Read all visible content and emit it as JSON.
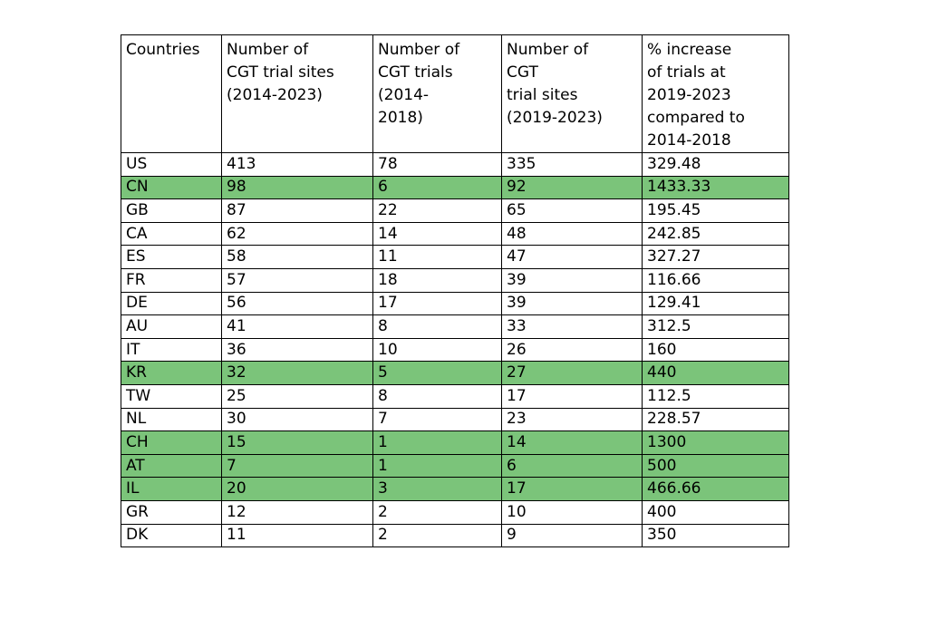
{
  "table": {
    "highlight_color": "#7bc47a",
    "columns": [
      "Countries",
      "Number of\nCGT trial sites\n(2014-2023)",
      "Number of\nCGT trials\n(2014-\n2018)",
      "Number of\nCGT\ntrial sites\n(2019-2023)",
      "% increase\nof trials at\n2019-2023\ncompared to\n2014-2018"
    ],
    "rows": [
      {
        "cells": [
          "US",
          "413",
          "78",
          "335",
          "329.48"
        ],
        "highlighted": false
      },
      {
        "cells": [
          "CN",
          "98",
          "6",
          "92",
          "1433.33"
        ],
        "highlighted": true
      },
      {
        "cells": [
          "GB",
          "87",
          "22",
          "65",
          "195.45"
        ],
        "highlighted": false
      },
      {
        "cells": [
          "CA",
          "62",
          "14",
          "48",
          "242.85"
        ],
        "highlighted": false
      },
      {
        "cells": [
          "ES",
          "58",
          "11",
          "47",
          "327.27"
        ],
        "highlighted": false
      },
      {
        "cells": [
          "FR",
          "57",
          "18",
          "39",
          "116.66"
        ],
        "highlighted": false
      },
      {
        "cells": [
          "DE",
          "56",
          "17",
          "39",
          "129.41"
        ],
        "highlighted": false
      },
      {
        "cells": [
          "AU",
          "41",
          "8",
          "33",
          "312.5"
        ],
        "highlighted": false
      },
      {
        "cells": [
          "IT",
          "36",
          "10",
          "26",
          "160"
        ],
        "highlighted": false
      },
      {
        "cells": [
          "KR",
          "32",
          "5",
          "27",
          "440"
        ],
        "highlighted": true
      },
      {
        "cells": [
          "TW",
          "25",
          "8",
          "17",
          "112.5"
        ],
        "highlighted": false
      },
      {
        "cells": [
          "NL",
          "30",
          "7",
          "23",
          "228.57"
        ],
        "highlighted": false
      },
      {
        "cells": [
          "CH",
          "15",
          "1",
          "14",
          "1300"
        ],
        "highlighted": true
      },
      {
        "cells": [
          "AT",
          "7",
          "1",
          "6",
          "500"
        ],
        "highlighted": true
      },
      {
        "cells": [
          "IL",
          "20",
          "3",
          "17",
          "466.66"
        ],
        "highlighted": true
      },
      {
        "cells": [
          "GR",
          "12",
          "2",
          "10",
          "400"
        ],
        "highlighted": false
      },
      {
        "cells": [
          "DK",
          "11",
          "2",
          "9",
          "350"
        ],
        "highlighted": false
      }
    ]
  }
}
